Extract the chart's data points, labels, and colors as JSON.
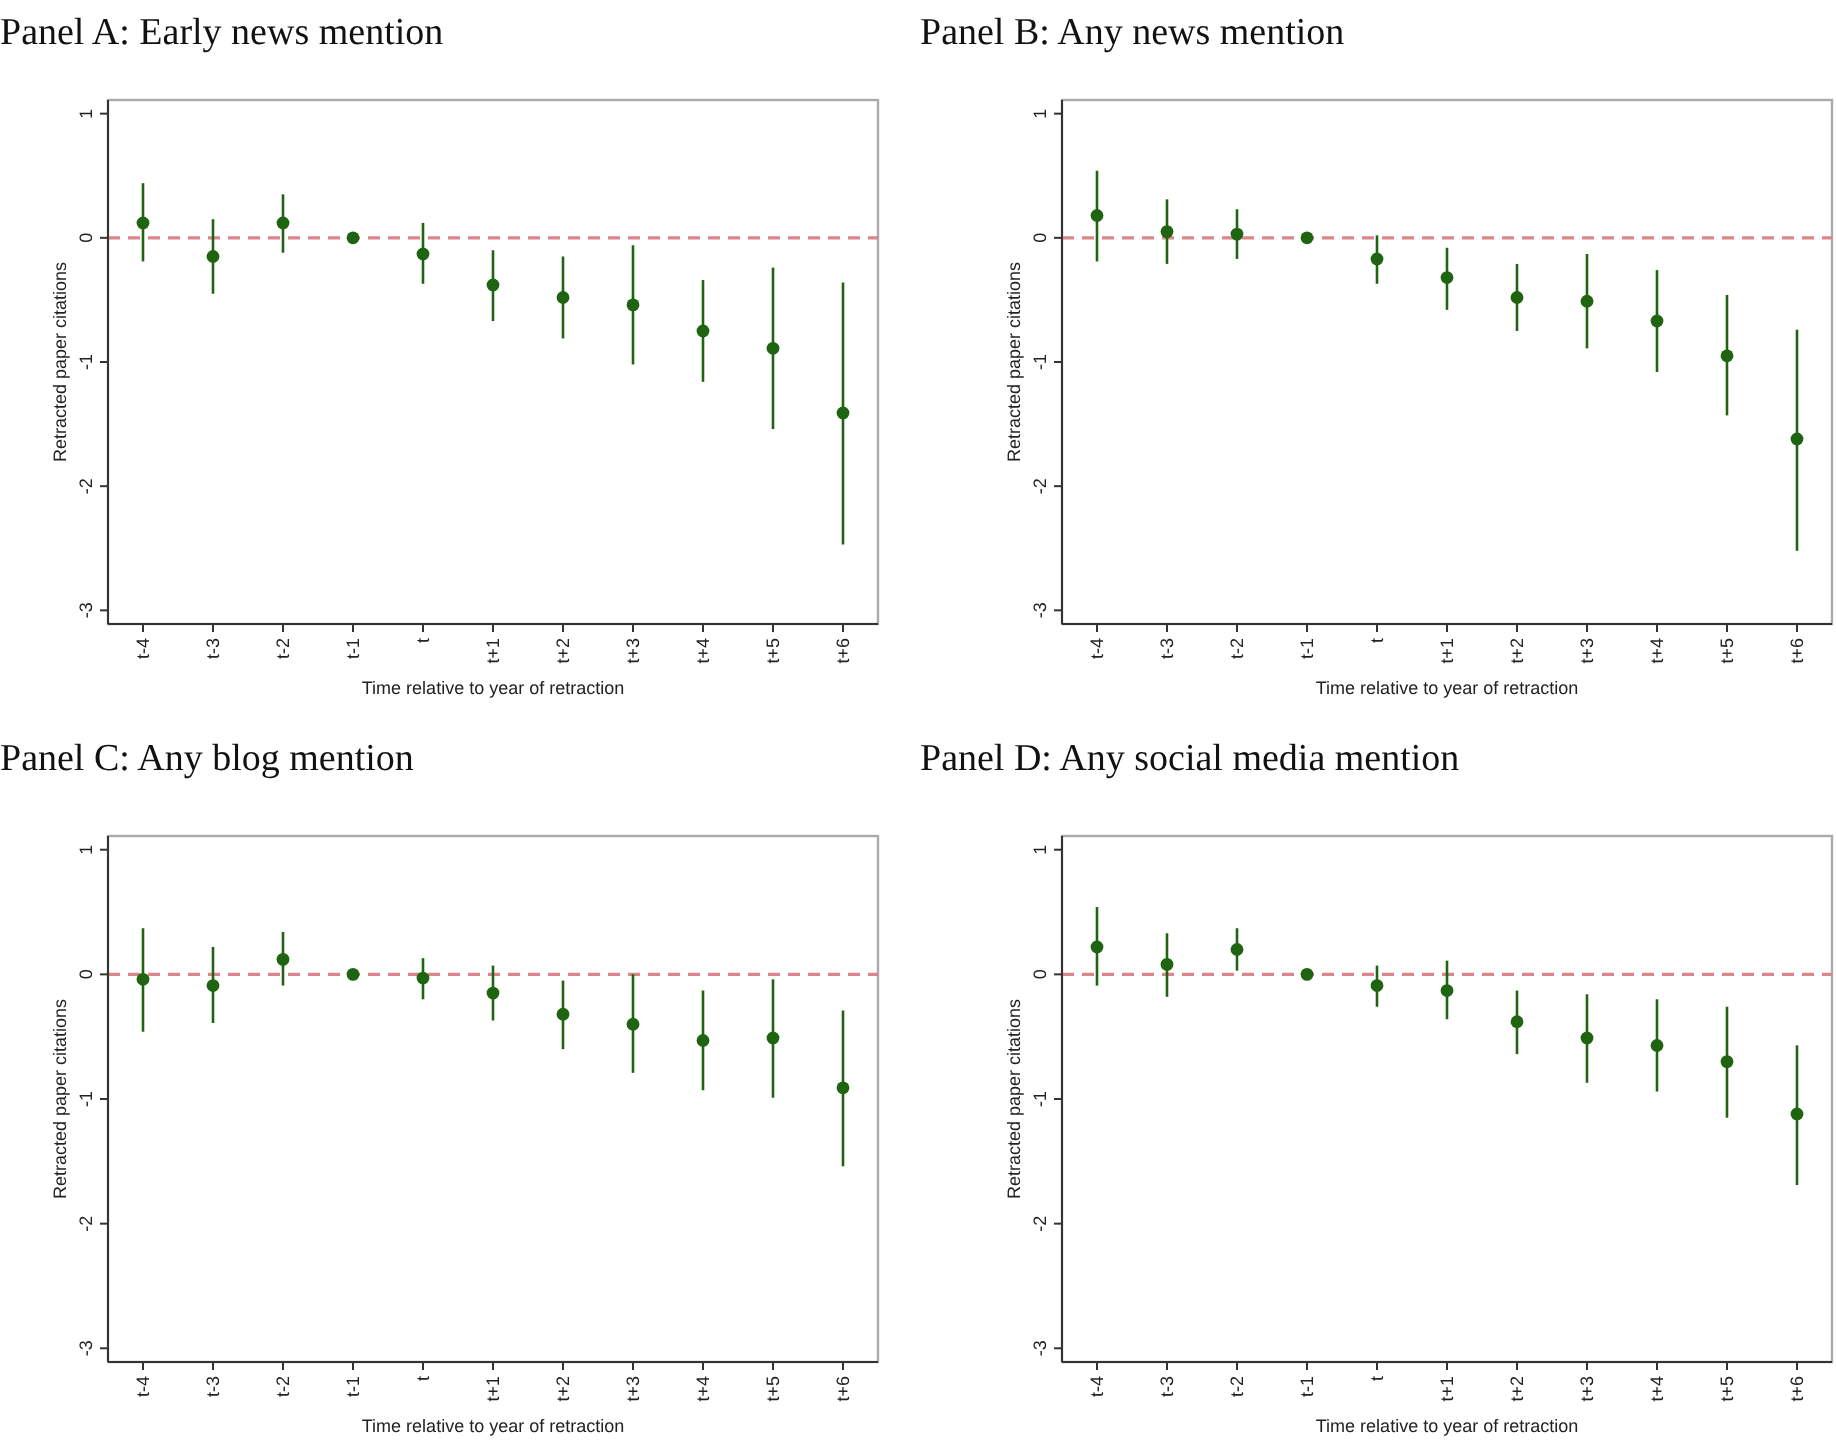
{
  "chart_data": [
    {
      "type": "scatter",
      "title": "Panel A: Early news mention",
      "xlabel": "Time relative to year of retraction",
      "ylabel": "Retracted paper citations",
      "categories": [
        "t-4",
        "t-3",
        "t-2",
        "t-1",
        "t",
        "t+1",
        "t+2",
        "t+3",
        "t+4",
        "t+5",
        "t+6"
      ],
      "ylim": [
        -3.11,
        1.11
      ],
      "yticks": [
        -3,
        -2,
        -1,
        0,
        1
      ],
      "marker": "circle",
      "ref_lines": [
        {
          "axis": "y",
          "value": 0,
          "color": "#d9868c",
          "line_style": "dashed"
        }
      ],
      "series": [
        {
          "color": "#1f6410",
          "values": [
            0.12,
            -0.15,
            0.12,
            0,
            -0.13,
            -0.38,
            -0.48,
            -0.54,
            -0.75,
            -0.89,
            -1.41
          ],
          "errors": [
            [
              -0.19,
              0.44
            ],
            [
              -0.45,
              0.15
            ],
            [
              -0.12,
              0.35
            ],
            null,
            [
              -0.37,
              0.12
            ],
            [
              -0.67,
              -0.1
            ],
            [
              -0.81,
              -0.15
            ],
            [
              -1.02,
              -0.06
            ],
            [
              -1.16,
              -0.34
            ],
            [
              -1.54,
              -0.24
            ],
            [
              -2.47,
              -0.36
            ]
          ]
        }
      ]
    },
    {
      "type": "scatter",
      "title": "Panel B: Any news mention",
      "xlabel": "Time relative to year of retraction",
      "ylabel": "Retracted paper citations",
      "categories": [
        "t-4",
        "t-3",
        "t-2",
        "t-1",
        "t",
        "t+1",
        "t+2",
        "t+3",
        "t+4",
        "t+5",
        "t+6"
      ],
      "ylim": [
        -3.11,
        1.11
      ],
      "yticks": [
        -3,
        -2,
        -1,
        0,
        1
      ],
      "marker": "circle",
      "ref_lines": [
        {
          "axis": "y",
          "value": 0,
          "color": "#d9868c",
          "line_style": "dashed"
        }
      ],
      "series": [
        {
          "color": "#1f6410",
          "values": [
            0.18,
            0.05,
            0.03,
            0,
            -0.17,
            -0.32,
            -0.48,
            -0.51,
            -0.67,
            -0.95,
            -1.62
          ],
          "errors": [
            [
              -0.19,
              0.54
            ],
            [
              -0.21,
              0.31
            ],
            [
              -0.17,
              0.23
            ],
            null,
            [
              -0.37,
              0.02
            ],
            [
              -0.58,
              -0.08
            ],
            [
              -0.75,
              -0.21
            ],
            [
              -0.89,
              -0.13
            ],
            [
              -1.08,
              -0.26
            ],
            [
              -1.43,
              -0.46
            ],
            [
              -2.52,
              -0.74
            ]
          ]
        }
      ]
    },
    {
      "type": "scatter",
      "title": "Panel C: Any blog mention",
      "xlabel": "Time relative to year of retraction",
      "ylabel": "Retracted paper citations",
      "categories": [
        "t-4",
        "t-3",
        "t-2",
        "t-1",
        "t",
        "t+1",
        "t+2",
        "t+3",
        "t+4",
        "t+5",
        "t+6"
      ],
      "ylim": [
        -3.11,
        1.11
      ],
      "yticks": [
        -3,
        -2,
        -1,
        0,
        1
      ],
      "marker": "circle",
      "ref_lines": [
        {
          "axis": "y",
          "value": 0,
          "color": "#d9868c",
          "line_style": "dashed"
        }
      ],
      "series": [
        {
          "color": "#1f6410",
          "values": [
            -0.04,
            -0.09,
            0.12,
            0,
            -0.03,
            -0.15,
            -0.32,
            -0.4,
            -0.53,
            -0.51,
            -0.91
          ],
          "errors": [
            [
              -0.46,
              0.37
            ],
            [
              -0.39,
              0.22
            ],
            [
              -0.09,
              0.34
            ],
            null,
            [
              -0.2,
              0.13
            ],
            [
              -0.37,
              0.07
            ],
            [
              -0.6,
              -0.05
            ],
            [
              -0.79,
              0
            ],
            [
              -0.93,
              -0.13
            ],
            [
              -0.99,
              -0.04
            ],
            [
              -1.54,
              -0.29
            ]
          ]
        }
      ]
    },
    {
      "type": "scatter",
      "title": "Panel D: Any social media mention",
      "xlabel": "Time relative to year of retraction",
      "ylabel": "Retracted paper citations",
      "categories": [
        "t-4",
        "t-3",
        "t-2",
        "t-1",
        "t",
        "t+1",
        "t+2",
        "t+3",
        "t+4",
        "t+5",
        "t+6"
      ],
      "ylim": [
        -3.11,
        1.11
      ],
      "yticks": [
        -3,
        -2,
        -1,
        0,
        1
      ],
      "marker": "circle",
      "ref_lines": [
        {
          "axis": "y",
          "value": 0,
          "color": "#d9868c",
          "line_style": "dashed"
        }
      ],
      "series": [
        {
          "color": "#1f6410",
          "values": [
            0.22,
            0.08,
            0.2,
            0,
            -0.09,
            -0.13,
            -0.38,
            -0.51,
            -0.57,
            -0.7,
            -1.12
          ],
          "errors": [
            [
              -0.09,
              0.54
            ],
            [
              -0.18,
              0.33
            ],
            [
              0.03,
              0.37
            ],
            null,
            [
              -0.26,
              0.07
            ],
            [
              -0.36,
              0.11
            ],
            [
              -0.64,
              -0.13
            ],
            [
              -0.87,
              -0.16
            ],
            [
              -0.94,
              -0.2
            ],
            [
              -1.15,
              -0.26
            ],
            [
              -1.69,
              -0.57
            ]
          ]
        }
      ]
    }
  ]
}
